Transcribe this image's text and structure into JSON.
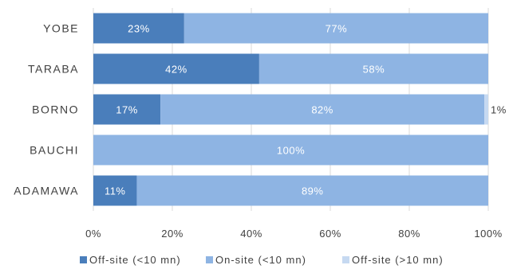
{
  "chart_data": {
    "type": "bar",
    "orientation": "horizontal",
    "stacked": true,
    "percent": true,
    "categories": [
      "YOBE",
      "TARABA",
      "BORNO",
      "BAUCHI",
      "ADAMAWA"
    ],
    "series": [
      {
        "name": "Off-site (<10 mn)",
        "color": "#4a7ebb",
        "values": [
          23,
          42,
          17,
          0,
          11
        ],
        "labels": [
          "23%",
          "42%",
          "17%",
          "",
          "11%"
        ]
      },
      {
        "name": "On-site (<10 mn)",
        "color": "#8eb4e3",
        "values": [
          77,
          58,
          82,
          100,
          89
        ],
        "labels": [
          "77%",
          "58%",
          "82%",
          "100%",
          "89%"
        ]
      },
      {
        "name": "Off-site (>10 mn)",
        "color": "#c6d9f1",
        "values": [
          0,
          0,
          1,
          0,
          0
        ],
        "labels": [
          "",
          "",
          "1%",
          "",
          ""
        ]
      }
    ],
    "xlim": [
      0,
      100
    ],
    "x_ticks": [
      "0%",
      "20%",
      "40%",
      "60%",
      "80%",
      "100%"
    ],
    "grid": true,
    "legend_position": "bottom",
    "title": "",
    "xlabel": "",
    "ylabel": ""
  }
}
